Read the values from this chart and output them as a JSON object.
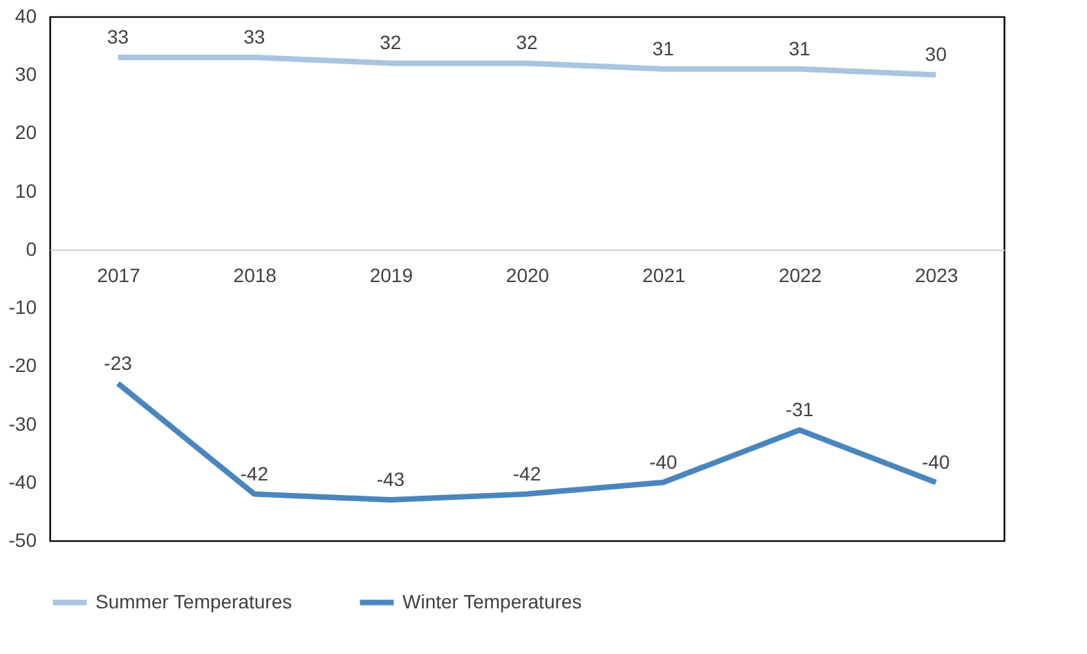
{
  "chart_data": {
    "type": "line",
    "categories": [
      "2017",
      "2018",
      "2019",
      "2020",
      "2021",
      "2022",
      "2023"
    ],
    "series": [
      {
        "name": "Summer Temperatures",
        "color": "#a9c4e0",
        "values": [
          33,
          33,
          32,
          32,
          31,
          31,
          30
        ]
      },
      {
        "name": "Winter Temperatures",
        "color": "#4a86bd",
        "values": [
          -23,
          -42,
          -43,
          -42,
          -40,
          -31,
          -40
        ]
      }
    ],
    "ylim": [
      -50,
      40
    ],
    "yticks": [
      -50,
      -40,
      -30,
      -20,
      -10,
      0,
      10,
      20,
      30,
      40
    ],
    "data_labels": true,
    "grid": false,
    "legend": "bottom",
    "marker": "none",
    "line_style": "solid"
  }
}
